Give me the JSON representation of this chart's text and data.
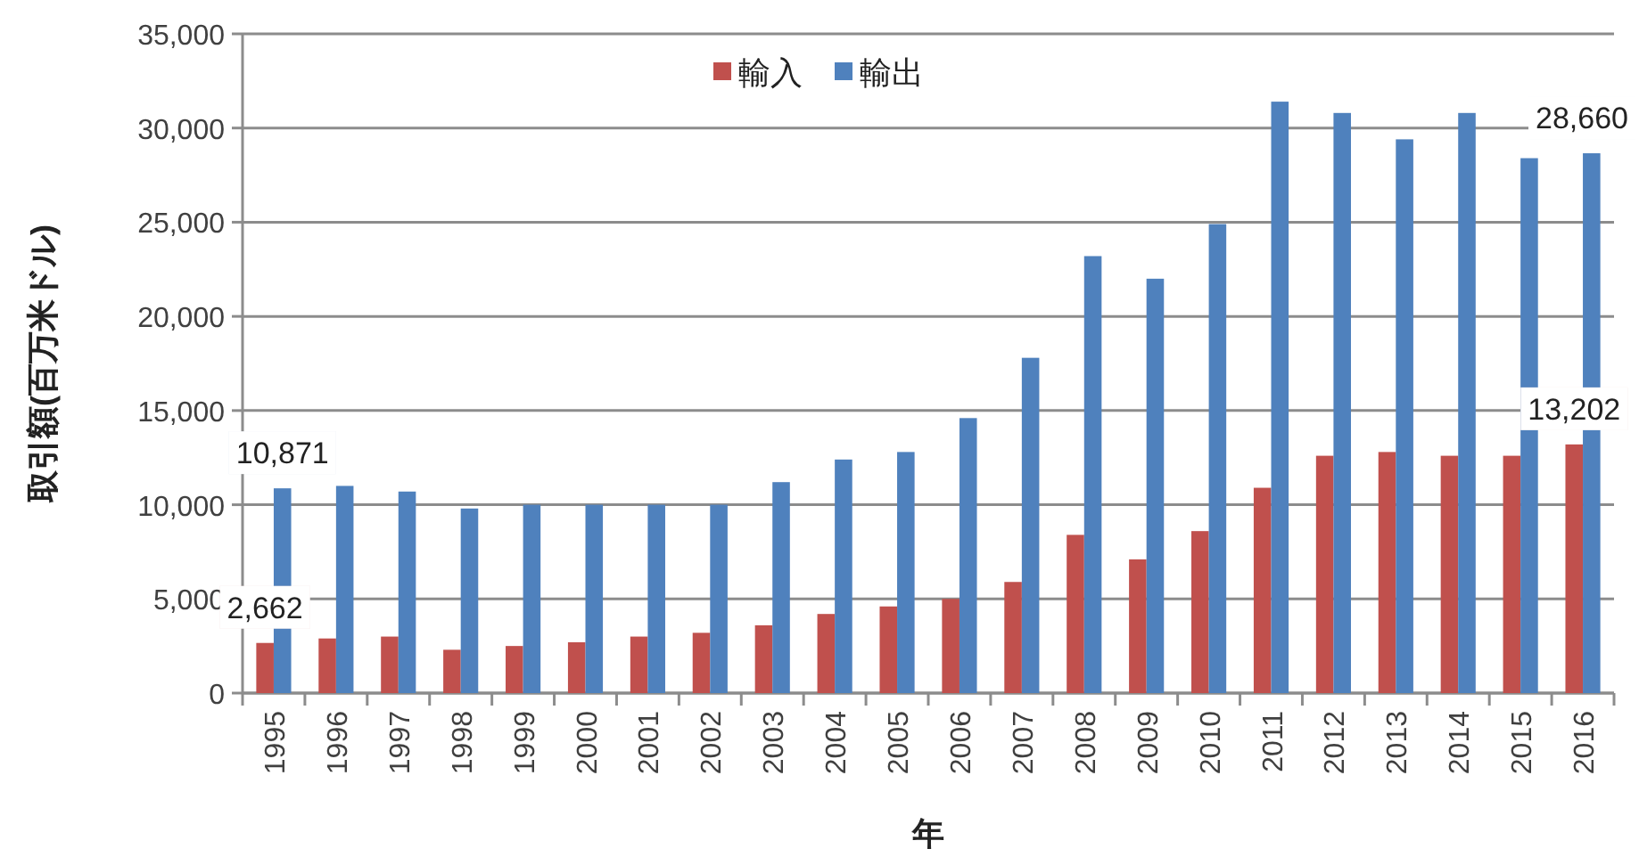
{
  "chart_data": {
    "type": "bar",
    "xlabel": "年",
    "ylabel": "取引額(百万米ドル)",
    "categories": [
      "1995",
      "1996",
      "1997",
      "1998",
      "1999",
      "2000",
      "2001",
      "2002",
      "2003",
      "2004",
      "2005",
      "2006",
      "2007",
      "2008",
      "2009",
      "2010",
      "2011",
      "2012",
      "2013",
      "2014",
      "2015",
      "2016"
    ],
    "series": [
      {
        "name": "輸入",
        "color": "#c0504d",
        "values": [
          2662,
          2900,
          3000,
          2300,
          2500,
          2700,
          3000,
          3200,
          3600,
          4200,
          4600,
          5000,
          5900,
          8400,
          7100,
          8600,
          10900,
          12600,
          12800,
          12600,
          12600,
          13202
        ],
        "value_labels": [
          "2,662",
          null,
          null,
          null,
          null,
          null,
          null,
          null,
          null,
          null,
          null,
          null,
          null,
          null,
          null,
          null,
          null,
          null,
          null,
          null,
          null,
          "13,202"
        ]
      },
      {
        "name": "輸出",
        "color": "#4f81bd",
        "values": [
          10871,
          11000,
          10700,
          9800,
          10000,
          10000,
          10000,
          10000,
          11200,
          12400,
          12800,
          14600,
          17800,
          23200,
          22000,
          24900,
          31400,
          30800,
          29400,
          30800,
          28400,
          28660
        ],
        "value_labels": [
          "10,871",
          null,
          null,
          null,
          null,
          null,
          null,
          null,
          null,
          null,
          null,
          null,
          null,
          null,
          null,
          null,
          null,
          null,
          null,
          null,
          null,
          "28,660"
        ]
      }
    ],
    "ylim": [
      0,
      35000
    ],
    "yticks": [
      {
        "value": 0,
        "label": "0"
      },
      {
        "value": 5000,
        "label": "5,000"
      },
      {
        "value": 10000,
        "label": "10,000"
      },
      {
        "value": 15000,
        "label": "15,000"
      },
      {
        "value": 20000,
        "label": "20,000"
      },
      {
        "value": 25000,
        "label": "25,000"
      },
      {
        "value": 30000,
        "label": "30,000"
      },
      {
        "value": 35000,
        "label": "35,000"
      }
    ],
    "grid": "y",
    "legend": "top"
  }
}
